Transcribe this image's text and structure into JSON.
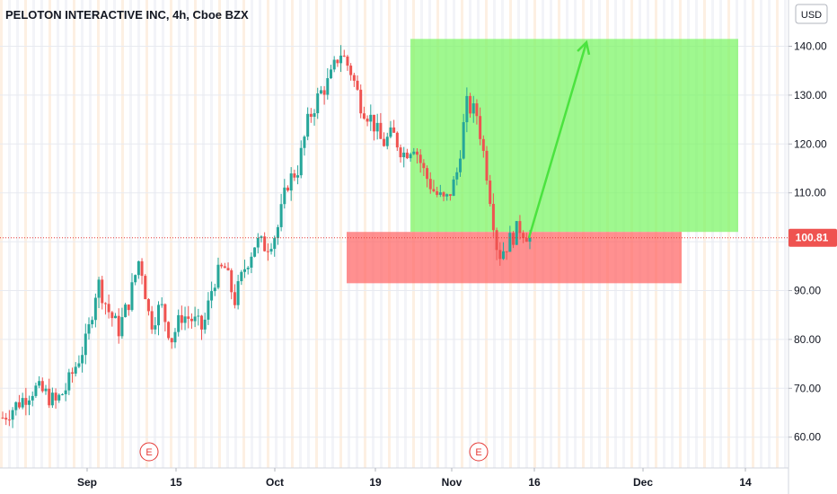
{
  "header": {
    "title": "PELOTON INTERACTIVE INC, 4h, Cboe BZX"
  },
  "currency_button": "USD",
  "colors": {
    "up": "#26a69a",
    "down": "#ef5350",
    "target_zone": "#76f560",
    "stop_zone": "#ff6161",
    "arrow": "#4be33f",
    "price_line": "#e53935",
    "price_tag": "#ef5350",
    "earnings": "#e53935"
  },
  "chart_data": {
    "type": "candlestick",
    "title": "PELOTON INTERACTIVE INC, 4h, Cboe BZX",
    "ylim": [
      55,
      145
    ],
    "y_ticks": [
      60,
      70,
      80,
      90,
      100,
      110,
      120,
      130,
      140
    ],
    "y_tick_labels": [
      "60.00",
      "70.00",
      "80.00",
      "90.00",
      "100.00",
      "110.00",
      "120.00",
      "130.00",
      "140.00"
    ],
    "x_ticks": [
      "Sep",
      "15",
      "Oct",
      "19",
      "Nov",
      "16",
      "Dec",
      "14"
    ],
    "last_price": 100.81,
    "last_price_label": "100.81",
    "earnings_markers": [
      {
        "label": "E"
      },
      {
        "label": "E"
      }
    ],
    "close_path": [
      64,
      66,
      68,
      70,
      69,
      67,
      70,
      75,
      80,
      92,
      86,
      82,
      88,
      97,
      83,
      87,
      80,
      85,
      84,
      82,
      92,
      95,
      88,
      95,
      100,
      99,
      102,
      112,
      115,
      125,
      130,
      133,
      139,
      135,
      128,
      125,
      120,
      122,
      118,
      120,
      114,
      110,
      108,
      113,
      128,
      126,
      113,
      97,
      100,
      103,
      101
    ],
    "target_zone": {
      "top": 141.5,
      "bottom": 102
    },
    "stop_zone": {
      "top": 102,
      "bottom": 91.5
    },
    "projection_arrow": {
      "from": 100.81,
      "to": 140.8
    }
  }
}
